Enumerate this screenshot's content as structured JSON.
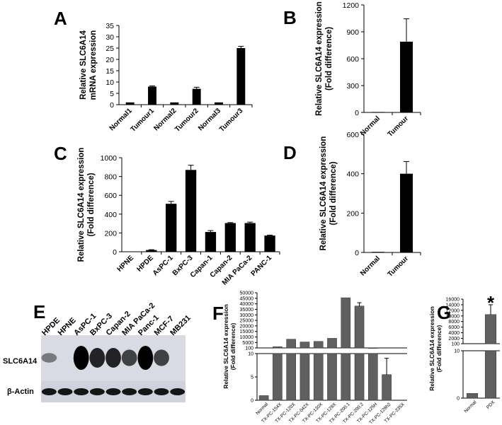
{
  "panels": {
    "A": "A",
    "B": "B",
    "C": "C",
    "D": "D",
    "E": "E",
    "F": "F",
    "G": "G"
  },
  "chart_data": [
    {
      "panel": "A",
      "type": "bar",
      "ylabel": "Relative SLC6A14\nmRNA expression",
      "yticks": [
        0,
        5,
        10,
        15,
        20,
        25,
        30,
        35
      ],
      "ylim": [
        0,
        35
      ],
      "categories": [
        "Normal1",
        "Tumour1",
        "Normal2",
        "Tumour2",
        "Normal3",
        "Tumour3"
      ],
      "values": [
        1,
        8,
        1,
        7,
        1,
        25
      ],
      "errors": [
        0,
        0.3,
        0,
        0.7,
        0,
        0.8
      ]
    },
    {
      "panel": "B",
      "type": "bar",
      "ylabel": "Relative SLC6A14 expression\n(Fold difference)",
      "yticks": [
        0,
        300,
        600,
        900,
        1200
      ],
      "ylim": [
        0,
        1200
      ],
      "categories": [
        "Normal",
        "Tumour"
      ],
      "values": [
        5,
        790
      ],
      "errors": [
        0,
        255
      ]
    },
    {
      "panel": "C",
      "type": "bar",
      "ylabel": "Relative SLC6A14 expression\n(Fold difference)",
      "yticks": [
        0,
        200,
        400,
        600,
        800,
        1000
      ],
      "ylim": [
        0,
        1000
      ],
      "categories": [
        "HPNE",
        "HPDE",
        "AsPC-1",
        "BxPC-3",
        "Capan-1",
        "Capan-2",
        "MIA PaCa-2",
        "PANC-1"
      ],
      "values": [
        3,
        18,
        510,
        870,
        210,
        305,
        305,
        172
      ],
      "errors": [
        0,
        4,
        25,
        50,
        15,
        5,
        10,
        5
      ]
    },
    {
      "panel": "D",
      "type": "bar",
      "ylabel": "Relative SLC6A14 expression\n(Fold difference)",
      "yticks": [
        0,
        200,
        400,
        600
      ],
      "ylim": [
        0,
        600
      ],
      "categories": [
        "Normal",
        "Tumour"
      ],
      "values": [
        3,
        400
      ],
      "errors": [
        0,
        62
      ]
    },
    {
      "panel": "F",
      "type": "bar",
      "ylabel": "Relative SLC6A14 expression\n(Fold difference)",
      "yticks_top": [
        100,
        5000,
        10000,
        15000,
        20000,
        25000,
        30000,
        35000,
        40000,
        45000,
        50000
      ],
      "yticks_bottom": [
        0,
        5,
        10
      ],
      "categories": [
        "Normal",
        "TX-PC-154X",
        "TX-PC-120X",
        "TX-PC-042X",
        "TX-PC-130X",
        "TX-PC-128X",
        "TX-PC-200.1",
        "TX-PC-200.2",
        "TX-PC-125H",
        "TX-PC-128h2",
        "TX-PC-235X"
      ],
      "values": [
        1,
        1200,
        8000,
        5500,
        6000,
        8800,
        45500,
        38000,
        120,
        5.5,
        0
      ],
      "errors": [
        0,
        0,
        0,
        0,
        0,
        0,
        0,
        3000,
        0,
        3.5,
        0
      ]
    },
    {
      "panel": "G",
      "type": "bar",
      "ylabel": "Relative SLC6A14 expression\n(Fold difference)",
      "yticks_top": [
        100,
        2000,
        4000,
        6000,
        8000,
        10000,
        12000,
        14000,
        16000
      ],
      "yticks_bottom": [
        0,
        10
      ],
      "categories": [
        "Normal",
        "PDX"
      ],
      "values": [
        1,
        10500
      ],
      "errors": [
        0,
        3500
      ],
      "annotation": "*"
    }
  ],
  "blot": {
    "lanes": [
      "HPDE",
      "HPNE",
      "AsPC-1",
      "BxPC-3",
      "Capan-2",
      "MIA PaCa-2",
      "Panc-1",
      "MCF-7",
      "MB231"
    ],
    "rows": [
      "SLC6A14",
      "β-Actin"
    ],
    "slc_intensity": [
      0.15,
      0,
      1,
      0.75,
      0.75,
      0.55,
      1,
      0.55,
      0
    ],
    "actin_intensity": [
      0.9,
      0.9,
      0.9,
      0.9,
      0.9,
      0.9,
      0.9,
      0.9,
      0.9
    ]
  }
}
